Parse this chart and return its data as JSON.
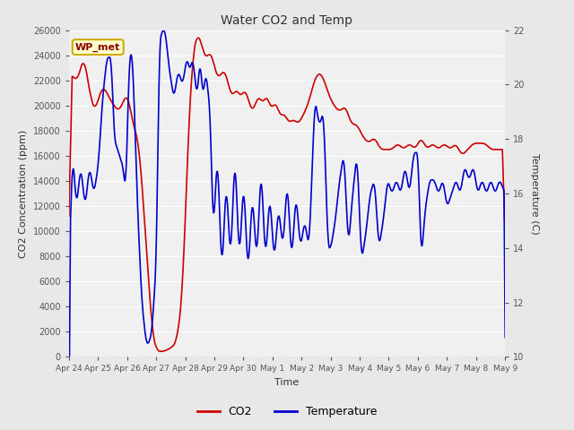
{
  "title": "Water CO2 and Temp",
  "xlabel": "Time",
  "ylabel_left": "CO2 Concentration (ppm)",
  "ylabel_right": "Temperature (C)",
  "annotation": "WP_met",
  "co2_ylim": [
    0,
    26000
  ],
  "temp_ylim": [
    10,
    22
  ],
  "co2_yticks": [
    0,
    2000,
    4000,
    6000,
    8000,
    10000,
    12000,
    14000,
    16000,
    18000,
    20000,
    22000,
    24000,
    26000
  ],
  "temp_yticks": [
    10,
    12,
    14,
    16,
    18,
    20,
    22
  ],
  "xtick_labels": [
    "Apr 24",
    "Apr 25",
    "Apr 26",
    "Apr 27",
    "Apr 28",
    "Apr 29",
    "Apr 30",
    "May 1",
    "May 2",
    "May 3",
    "May 4",
    "May 5",
    "May 6",
    "May 7",
    "May 8",
    "May 9"
  ],
  "bg_color": "#e8e8e8",
  "plot_bg_color": "#f0f0f0",
  "co2_color": "#cc0000",
  "temp_color": "#0000cc",
  "legend_co2": "CO2",
  "legend_temp": "Temperature",
  "grid_color": "#ffffff",
  "tick_color": "#555555",
  "label_color": "#333333",
  "annotation_text_color": "#8B0000",
  "annotation_bg": "#ffffcc",
  "annotation_edge": "#ccaa00"
}
